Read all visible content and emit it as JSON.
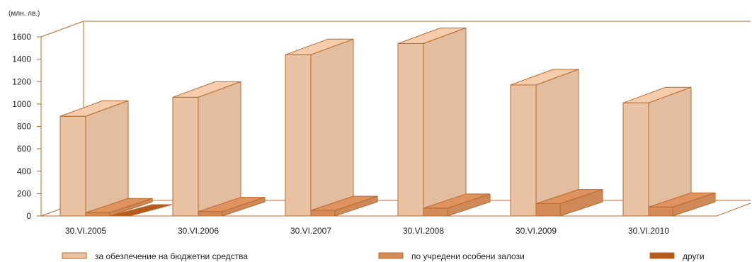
{
  "chart_data": {
    "type": "bar",
    "unit_label": "(млн. лв.)",
    "categories": [
      "30.VI.2005",
      "30.VI.2006",
      "30.VI.2007",
      "30.VI.2008",
      "30.VI.2009",
      "30.VI.2010"
    ],
    "series": [
      {
        "name": "за обезпечение на бюджетни средства",
        "values": [
          890,
          1060,
          1440,
          1540,
          1170,
          1010
        ],
        "color": "#e9c3a4"
      },
      {
        "name": "по учредени особени залози",
        "values": [
          30,
          40,
          50,
          70,
          110,
          80
        ],
        "color": "#d58c5a"
      },
      {
        "name": "други",
        "values": [
          5,
          0,
          0,
          0,
          0,
          0
        ],
        "color": "#b55a18"
      }
    ],
    "yticks": [
      0,
      200,
      400,
      600,
      800,
      1000,
      1200,
      1400,
      1600
    ],
    "ylim": [
      0,
      1600
    ],
    "legend_position": "bottom",
    "grid": false,
    "style": "3d",
    "edge_color": "#b86a2c"
  }
}
